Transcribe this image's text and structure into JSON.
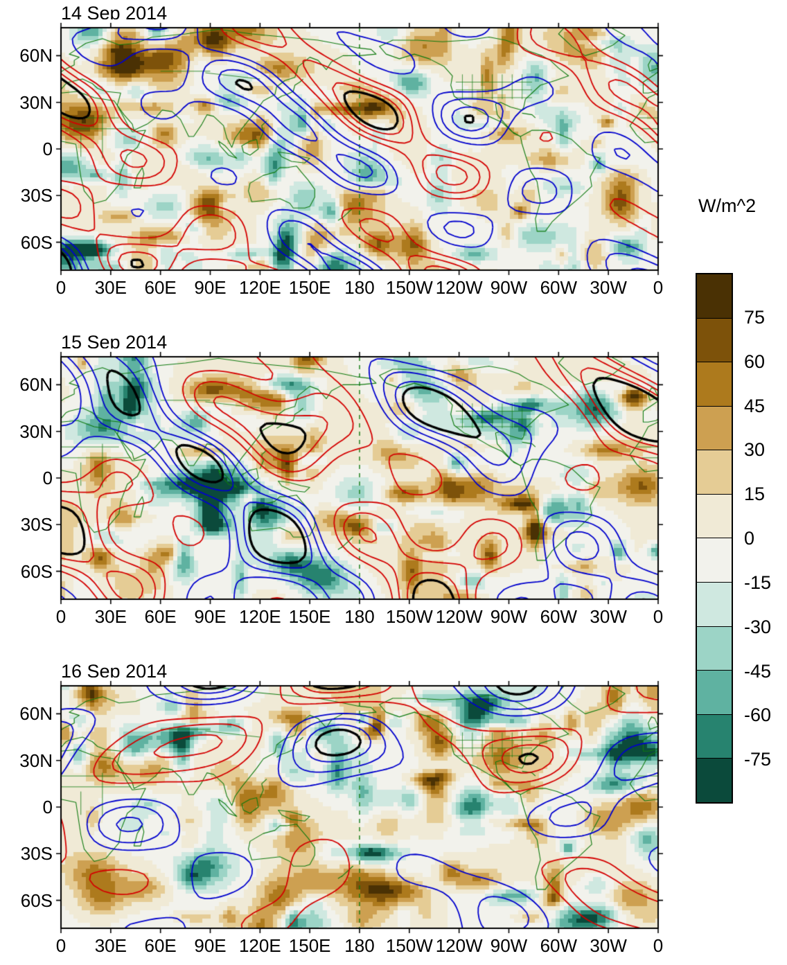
{
  "style": {
    "positive_contour": "#d40000",
    "negative_contour": "#0000cd",
    "significant_contour": "#000000",
    "coastline": "#0f7a0f",
    "frame": "#000000",
    "background": "#ffffff"
  },
  "chart_data": {
    "type": "heatmap",
    "subtype": "global-longitude-latitude-anomaly-maps-with-contour-overlays",
    "units": "W/m^2",
    "panels": [
      {
        "title": "14 Sep 2014"
      },
      {
        "title": "15 Sep 2014"
      },
      {
        "title": "16 Sep 2014"
      }
    ],
    "x_axis": {
      "tick_labels": [
        "0",
        "30E",
        "60E",
        "90E",
        "120E",
        "150E",
        "180",
        "150W",
        "120W",
        "90W",
        "60W",
        "30W",
        "0"
      ],
      "range_deg_lon": [
        0,
        360
      ]
    },
    "y_axis": {
      "tick_labels": [
        "60N",
        "30N",
        "0",
        "30S",
        "60S"
      ],
      "tick_lat_deg": [
        60,
        30,
        0,
        -30,
        -60
      ],
      "range_deg_lat": [
        -78,
        78
      ]
    },
    "shading": {
      "levels_w_m2": [
        -75,
        -60,
        -45,
        -30,
        -15,
        0,
        15,
        30,
        45,
        60,
        75
      ],
      "palette_top_to_bottom": [
        "#4a3104",
        "#7d520a",
        "#ad7a1d",
        "#cda051",
        "#e5cc95",
        "#f0ead6",
        "#f2f2ec",
        "#cfe8e0",
        "#9cd4c6",
        "#5fb2a1",
        "#27836f",
        "#0b4a3b"
      ],
      "positive_color_family": "brown",
      "negative_color_family": "teal"
    },
    "overlays": {
      "contour_lines": [
        "red (positive)",
        "blue (negative)",
        "black (thick)"
      ],
      "coastlines": "dark green",
      "dashed_meridian_deg": 180
    },
    "colorbar": {
      "label": "W/m^2",
      "tick_labels": [
        "75",
        "60",
        "45",
        "30",
        "15",
        "0",
        "-15",
        "-30",
        "-45",
        "-60",
        "-75"
      ],
      "orientation": "vertical",
      "position": "right"
    }
  }
}
